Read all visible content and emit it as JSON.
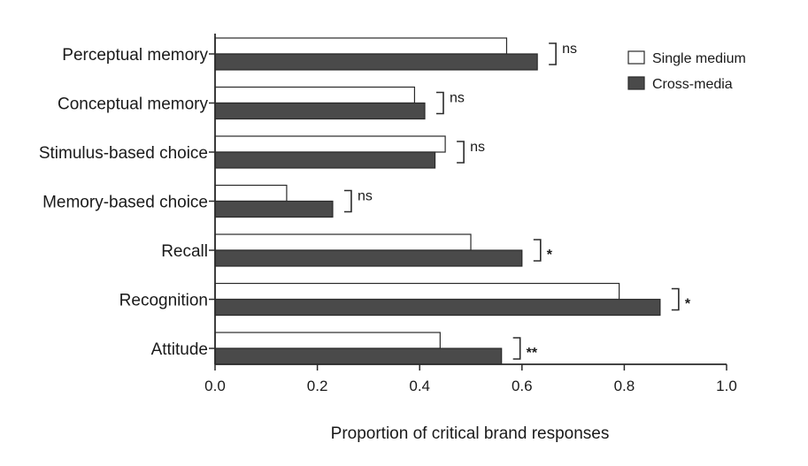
{
  "chart_data": {
    "type": "bar",
    "orientation": "horizontal",
    "categories": [
      "Perceptual memory",
      "Conceptual memory",
      "Stimulus-based choice",
      "Memory-based choice",
      "Recall",
      "Recognition",
      "Attitude"
    ],
    "series": [
      {
        "name": "Single medium",
        "color": "#ffffff",
        "values": [
          0.57,
          0.39,
          0.45,
          0.14,
          0.5,
          0.79,
          0.44
        ]
      },
      {
        "name": "Cross-media",
        "color": "#4a4a4a",
        "values": [
          0.63,
          0.41,
          0.43,
          0.23,
          0.6,
          0.87,
          0.56
        ]
      }
    ],
    "significance": [
      "ns",
      "ns",
      "ns",
      "ns",
      "*",
      "*",
      "**"
    ],
    "xlabel": "Proportion of critical brand responses",
    "xlim": [
      0,
      1.0
    ],
    "xticks": [
      "0.0",
      "0.2",
      "0.4",
      "0.6",
      "0.8",
      "1.0"
    ],
    "legend_position": "top-right",
    "grid": false
  }
}
